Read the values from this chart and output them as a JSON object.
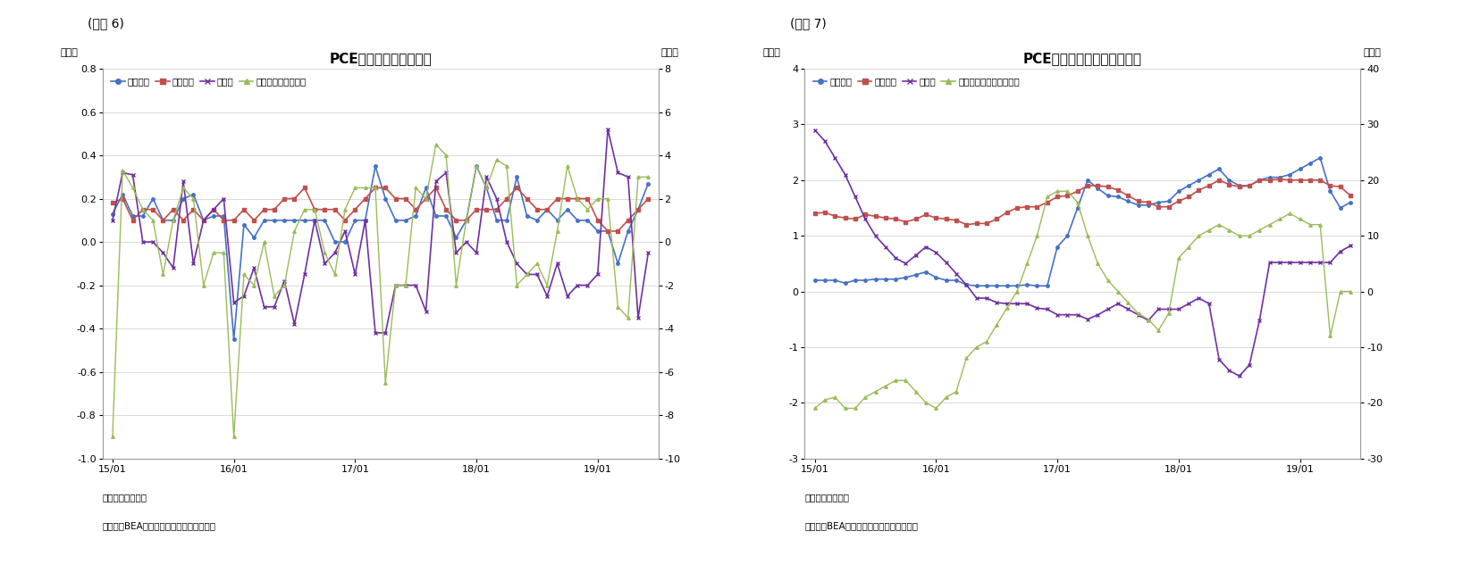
{
  "fig_label1": "(図表 6)",
  "fig_label2": "(図表 7)",
  "chart1": {
    "title": "PCE価格指数（前月比）",
    "ylabel_left": "（％）",
    "ylabel_right": "（％）",
    "ylim_left": [
      -1.0,
      0.8
    ],
    "ylim_right": [
      -10,
      8
    ],
    "yticks_left": [
      -1.0,
      -0.8,
      -0.6,
      -0.4,
      -0.2,
      0.0,
      0.2,
      0.4,
      0.6,
      0.8
    ],
    "yticks_right": [
      -10,
      -8,
      -6,
      -4,
      -2,
      0,
      2,
      4,
      6,
      8
    ],
    "xtick_labels": [
      "15/01",
      "16/01",
      "17/01",
      "18/01",
      "19/01"
    ],
    "legend": [
      "総合指数",
      "コア指数",
      "食料品",
      "エネルギー（右軸）"
    ],
    "note1": "（注）季節調整済",
    "note2": "（資料）BEAよりニッセイ基礎研究所作成",
    "colors": [
      "#4472C4",
      "#C0504D",
      "#7030A0",
      "#9BBB59"
    ],
    "markers": [
      "o",
      "s",
      "x",
      "^"
    ],
    "x_tick_positions": [
      0,
      12,
      24,
      36,
      48
    ],
    "sogou": [
      0.13,
      0.22,
      0.12,
      0.12,
      0.2,
      0.1,
      0.1,
      0.2,
      0.22,
      0.1,
      0.12,
      0.12,
      -0.45,
      0.08,
      0.02,
      0.1,
      0.1,
      0.1,
      0.1,
      0.1,
      0.1,
      0.1,
      0.0,
      0.0,
      0.1,
      0.1,
      0.35,
      0.2,
      0.1,
      0.1,
      0.12,
      0.25,
      0.12,
      0.12,
      0.02,
      0.1,
      0.35,
      0.25,
      0.1,
      0.1,
      0.3,
      0.12,
      0.1,
      0.15,
      0.1,
      0.15,
      0.1,
      0.1,
      0.05,
      0.05,
      -0.1,
      0.05,
      0.15,
      0.27
    ],
    "core": [
      0.18,
      0.2,
      0.1,
      0.15,
      0.15,
      0.1,
      0.15,
      0.1,
      0.15,
      0.1,
      0.15,
      0.1,
      0.1,
      0.15,
      0.1,
      0.15,
      0.15,
      0.2,
      0.2,
      0.25,
      0.15,
      0.15,
      0.15,
      0.1,
      0.15,
      0.2,
      0.25,
      0.25,
      0.2,
      0.2,
      0.15,
      0.2,
      0.25,
      0.15,
      0.1,
      0.1,
      0.15,
      0.15,
      0.15,
      0.2,
      0.25,
      0.2,
      0.15,
      0.15,
      0.2,
      0.2,
      0.2,
      0.2,
      0.1,
      0.05,
      0.05,
      0.1,
      0.15,
      0.2
    ],
    "food": [
      0.1,
      0.32,
      0.31,
      0.0,
      0.0,
      -0.05,
      -0.12,
      0.28,
      -0.1,
      0.1,
      0.15,
      0.2,
      -0.28,
      -0.25,
      -0.12,
      -0.3,
      -0.3,
      -0.18,
      -0.38,
      -0.15,
      0.1,
      -0.1,
      -0.05,
      0.05,
      -0.15,
      0.1,
      -0.42,
      -0.42,
      -0.2,
      -0.2,
      -0.2,
      -0.32,
      0.28,
      0.32,
      -0.05,
      0.0,
      -0.05,
      0.3,
      0.2,
      0.0,
      -0.1,
      -0.15,
      -0.15,
      -0.25,
      -0.1,
      -0.25,
      -0.2,
      -0.2,
      -0.15,
      0.52,
      0.32,
      0.3,
      -0.35,
      -0.05
    ],
    "energy": [
      -9.0,
      3.3,
      2.5,
      1.5,
      1.0,
      -1.5,
      1.0,
      2.5,
      2.0,
      -2.0,
      -0.5,
      -0.5,
      -9.0,
      -1.5,
      -2.0,
      0.0,
      -2.5,
      -2.0,
      0.5,
      1.5,
      1.5,
      -0.5,
      -1.5,
      1.5,
      2.5,
      2.5,
      2.5,
      -6.5,
      -2.0,
      -2.0,
      2.5,
      2.0,
      4.5,
      4.0,
      -2.0,
      1.0,
      3.5,
      2.5,
      3.8,
      3.5,
      -2.0,
      -1.5,
      -1.0,
      -2.0,
      0.5,
      3.5,
      2.0,
      1.5,
      2.0,
      2.0,
      -3.0,
      -3.5,
      3.0,
      3.0
    ]
  },
  "chart2": {
    "title": "PCE価格指数（前年同月比）",
    "ylabel_left": "（％）",
    "ylabel_right": "（％）",
    "ylim_left": [
      -3,
      4
    ],
    "ylim_right": [
      -30,
      40
    ],
    "yticks_left": [
      -3,
      -2,
      -1,
      0,
      1,
      2,
      3,
      4
    ],
    "yticks_right": [
      -30,
      -20,
      -10,
      0,
      10,
      20,
      30,
      40
    ],
    "xtick_labels": [
      "15/01",
      "16/01",
      "17/01",
      "18/01",
      "19/01"
    ],
    "legend": [
      "総合指数",
      "コア指数",
      "食料品",
      "エネルギー関連（右軸）"
    ],
    "note1": "（注）季節調整済",
    "note2": "（資料）BEAよりニッセイ基礎研究所作成",
    "colors": [
      "#4472C4",
      "#C0504D",
      "#7030A0",
      "#9BBB59"
    ],
    "markers": [
      "o",
      "s",
      "x",
      "^"
    ],
    "x_tick_positions": [
      0,
      12,
      24,
      36,
      48
    ],
    "sogou2": [
      0.2,
      0.2,
      0.2,
      0.15,
      0.2,
      0.2,
      0.22,
      0.22,
      0.22,
      0.25,
      0.3,
      0.35,
      0.25,
      0.2,
      0.2,
      0.12,
      0.1,
      0.1,
      0.1,
      0.1,
      0.1,
      0.12,
      0.1,
      0.1,
      0.8,
      1.0,
      1.5,
      2.0,
      1.85,
      1.72,
      1.7,
      1.62,
      1.55,
      1.55,
      1.6,
      1.62,
      1.8,
      1.9,
      2.0,
      2.1,
      2.2,
      2.0,
      1.9,
      1.9,
      2.0,
      2.05,
      2.05,
      2.1,
      2.2,
      2.3,
      2.4,
      1.8,
      1.5,
      1.6
    ],
    "core2": [
      1.4,
      1.42,
      1.35,
      1.32,
      1.3,
      1.38,
      1.35,
      1.32,
      1.3,
      1.25,
      1.3,
      1.38,
      1.32,
      1.3,
      1.28,
      1.2,
      1.22,
      1.22,
      1.3,
      1.42,
      1.5,
      1.52,
      1.52,
      1.6,
      1.7,
      1.72,
      1.8,
      1.9,
      1.9,
      1.88,
      1.82,
      1.72,
      1.62,
      1.6,
      1.52,
      1.52,
      1.62,
      1.7,
      1.82,
      1.9,
      2.0,
      1.92,
      1.88,
      1.9,
      2.0,
      2.0,
      2.02,
      2.0,
      2.0,
      2.0,
      2.0,
      1.9,
      1.88,
      1.72
    ],
    "food2": [
      2.9,
      2.7,
      2.4,
      2.1,
      1.7,
      1.3,
      1.0,
      0.8,
      0.6,
      0.5,
      0.65,
      0.8,
      0.7,
      0.52,
      0.32,
      0.12,
      -0.12,
      -0.12,
      -0.2,
      -0.22,
      -0.22,
      -0.22,
      -0.3,
      -0.32,
      -0.42,
      -0.42,
      -0.42,
      -0.5,
      -0.42,
      -0.32,
      -0.22,
      -0.32,
      -0.42,
      -0.52,
      -0.32,
      -0.32,
      -0.32,
      -0.22,
      -0.12,
      -0.22,
      -1.22,
      -1.42,
      -1.52,
      -1.32,
      -0.52,
      0.52,
      0.52,
      0.52,
      0.52,
      0.52,
      0.52,
      0.52,
      0.72,
      0.82
    ],
    "energy2": [
      -21,
      -19.5,
      -19,
      -21,
      -21,
      -19,
      -18,
      -17,
      -16,
      -16,
      -18,
      -20,
      -21,
      -19,
      -18,
      -12,
      -10,
      -9,
      -6,
      -3,
      0,
      5,
      10,
      17,
      18,
      18,
      16,
      10,
      5,
      2,
      0,
      -2,
      -4,
      -5,
      -7,
      -4,
      6,
      8,
      10,
      11,
      12,
      11,
      10,
      10,
      11,
      12,
      13,
      14,
      13,
      12,
      12,
      -8,
      0,
      0
    ]
  }
}
